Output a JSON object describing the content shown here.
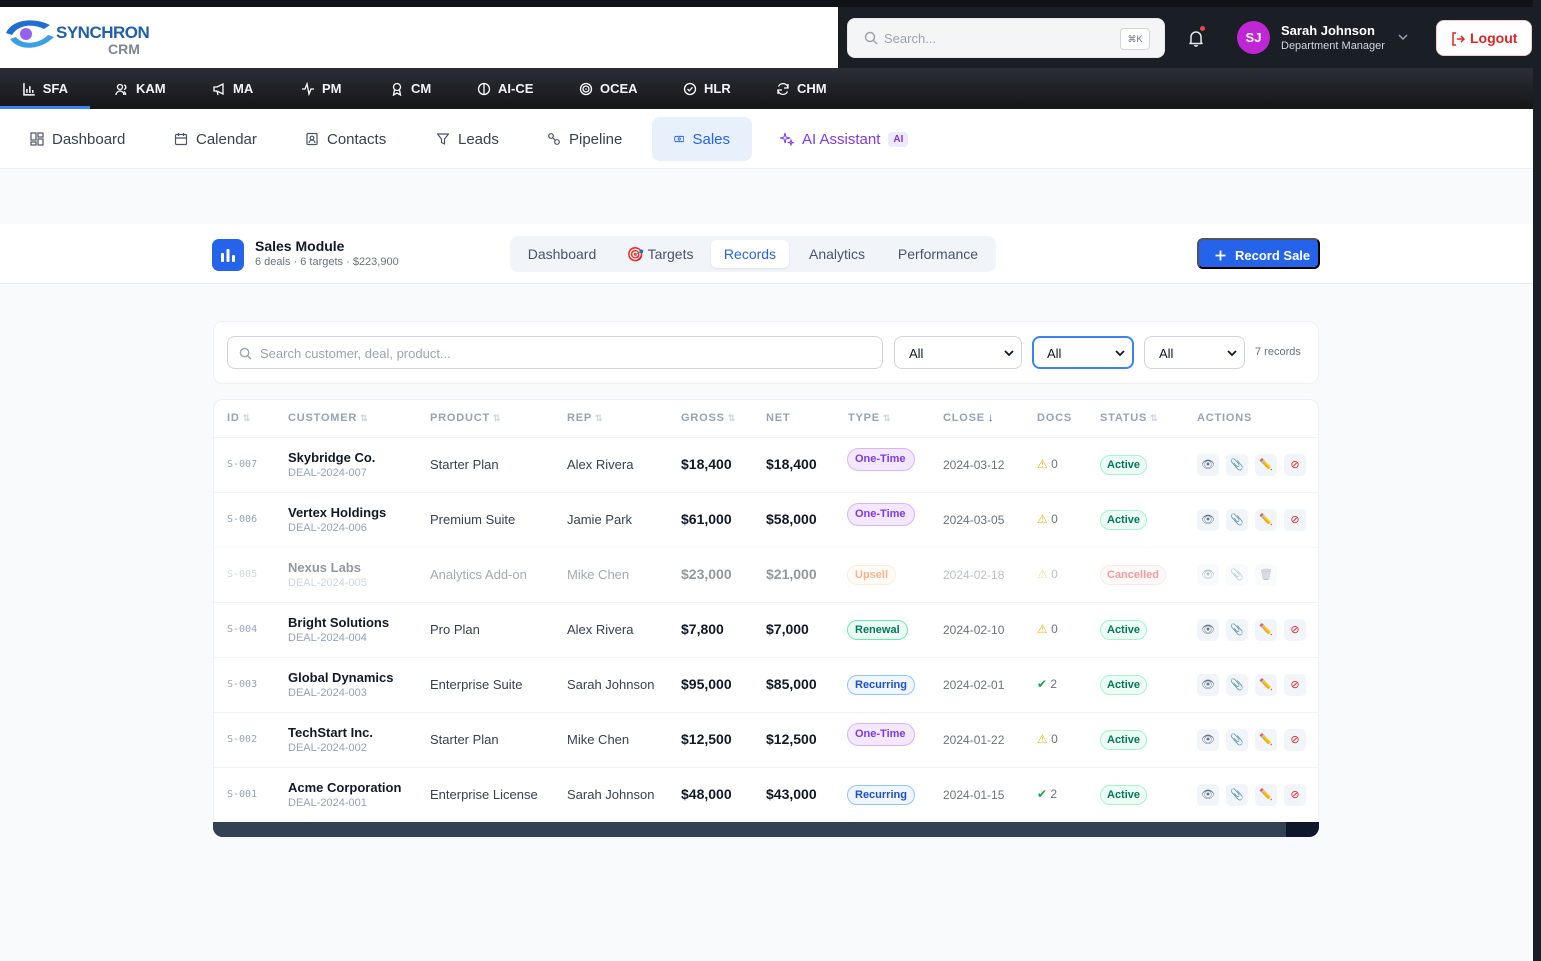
{
  "brand": {
    "name_top": "SYNCHRON",
    "name_bottom": "CRM"
  },
  "header": {
    "search_placeholder": "Search...",
    "search_shortcut": "⌘K",
    "user_initials": "SJ",
    "user_name": "Sarah Johnson",
    "user_role": "Department Manager",
    "logout_label": "Logout"
  },
  "modules": [
    {
      "label": "SFA",
      "icon": "bar-chart-icon"
    },
    {
      "label": "KAM",
      "icon": "users-icon"
    },
    {
      "label": "MA",
      "icon": "megaphone-icon"
    },
    {
      "label": "PM",
      "icon": "activity-icon"
    },
    {
      "label": "CM",
      "icon": "award-icon"
    },
    {
      "label": "AI-CE",
      "icon": "brain-icon"
    },
    {
      "label": "OCEA",
      "icon": "target-icon"
    },
    {
      "label": "HLR",
      "icon": "badge-icon"
    },
    {
      "label": "CHM",
      "icon": "refresh-icon"
    }
  ],
  "subnav": [
    {
      "label": "Dashboard",
      "icon": "grid-icon"
    },
    {
      "label": "Calendar",
      "icon": "calendar-icon"
    },
    {
      "label": "Contacts",
      "icon": "contact-icon"
    },
    {
      "label": "Leads",
      "icon": "filter-icon"
    },
    {
      "label": "Pipeline",
      "icon": "pipeline-icon"
    },
    {
      "label": "Sales",
      "icon": "ticket-icon"
    },
    {
      "label": "AI Assistant",
      "icon": "sparkle-icon",
      "badge": "AI"
    }
  ],
  "module_header": {
    "title": "Sales Module",
    "subtitle": "6 deals · 6 targets · $223,900",
    "tabs": [
      "Dashboard",
      "🎯 Targets",
      "Records",
      "Analytics",
      "Performance"
    ],
    "active_tab": "Records",
    "record_button": "Record Sale"
  },
  "filters": {
    "search_placeholder": "Search customer, deal, product...",
    "select1": "All",
    "select2": "All",
    "select3": "All",
    "count": "7 records"
  },
  "table": {
    "headers": [
      "ID",
      "CUSTOMER",
      "PRODUCT",
      "REP",
      "GROSS",
      "NET",
      "TYPE",
      "CLOSE",
      "DOCS",
      "STATUS",
      "ACTIONS"
    ],
    "rows": [
      {
        "id": "S-007",
        "customer": "Skybridge Co.",
        "deal": "DEAL-2024-007",
        "product": "Starter Plan",
        "rep": "Alex Rivera",
        "gross": "$18,400",
        "net": "$18,400",
        "type": "One-Time",
        "close": "2024-03-12",
        "docs": "0",
        "docs_ok": false,
        "status": "Active"
      },
      {
        "id": "S-006",
        "customer": "Vertex Holdings",
        "deal": "DEAL-2024-006",
        "product": "Premium Suite",
        "rep": "Jamie Park",
        "gross": "$61,000",
        "net": "$58,000",
        "type": "One-Time",
        "close": "2024-03-05",
        "docs": "0",
        "docs_ok": false,
        "status": "Active"
      },
      {
        "id": "S-005",
        "customer": "Nexus Labs",
        "deal": "DEAL-2024-005",
        "product": "Analytics Add-on",
        "rep": "Mike Chen",
        "gross": "$23,000",
        "net": "$21,000",
        "type": "Upsell",
        "close": "2024-02-18",
        "docs": "0",
        "docs_ok": false,
        "status": "Cancelled"
      },
      {
        "id": "S-004",
        "customer": "Bright Solutions",
        "deal": "DEAL-2024-004",
        "product": "Pro Plan",
        "rep": "Alex Rivera",
        "gross": "$7,800",
        "net": "$7,000",
        "type": "Renewal",
        "close": "2024-02-10",
        "docs": "0",
        "docs_ok": false,
        "status": "Active"
      },
      {
        "id": "S-003",
        "customer": "Global Dynamics",
        "deal": "DEAL-2024-003",
        "product": "Enterprise Suite",
        "rep": "Sarah Johnson",
        "gross": "$95,000",
        "net": "$85,000",
        "type": "Recurring",
        "close": "2024-02-01",
        "docs": "2",
        "docs_ok": true,
        "status": "Active"
      },
      {
        "id": "S-002",
        "customer": "TechStart Inc.",
        "deal": "DEAL-2024-002",
        "product": "Starter Plan",
        "rep": "Mike Chen",
        "gross": "$12,500",
        "net": "$12,500",
        "type": "One-Time",
        "close": "2024-01-22",
        "docs": "0",
        "docs_ok": false,
        "status": "Active"
      },
      {
        "id": "S-001",
        "customer": "Acme Corporation",
        "deal": "DEAL-2024-001",
        "product": "Enterprise License",
        "rep": "Sarah Johnson",
        "gross": "$48,000",
        "net": "$43,000",
        "type": "Recurring",
        "close": "2024-01-15",
        "docs": "2",
        "docs_ok": true,
        "status": "Active"
      }
    ]
  },
  "colors": {
    "accent": "#2563eb",
    "danger": "#dc2626",
    "success": "#047857",
    "ai": "#7c3aed"
  }
}
